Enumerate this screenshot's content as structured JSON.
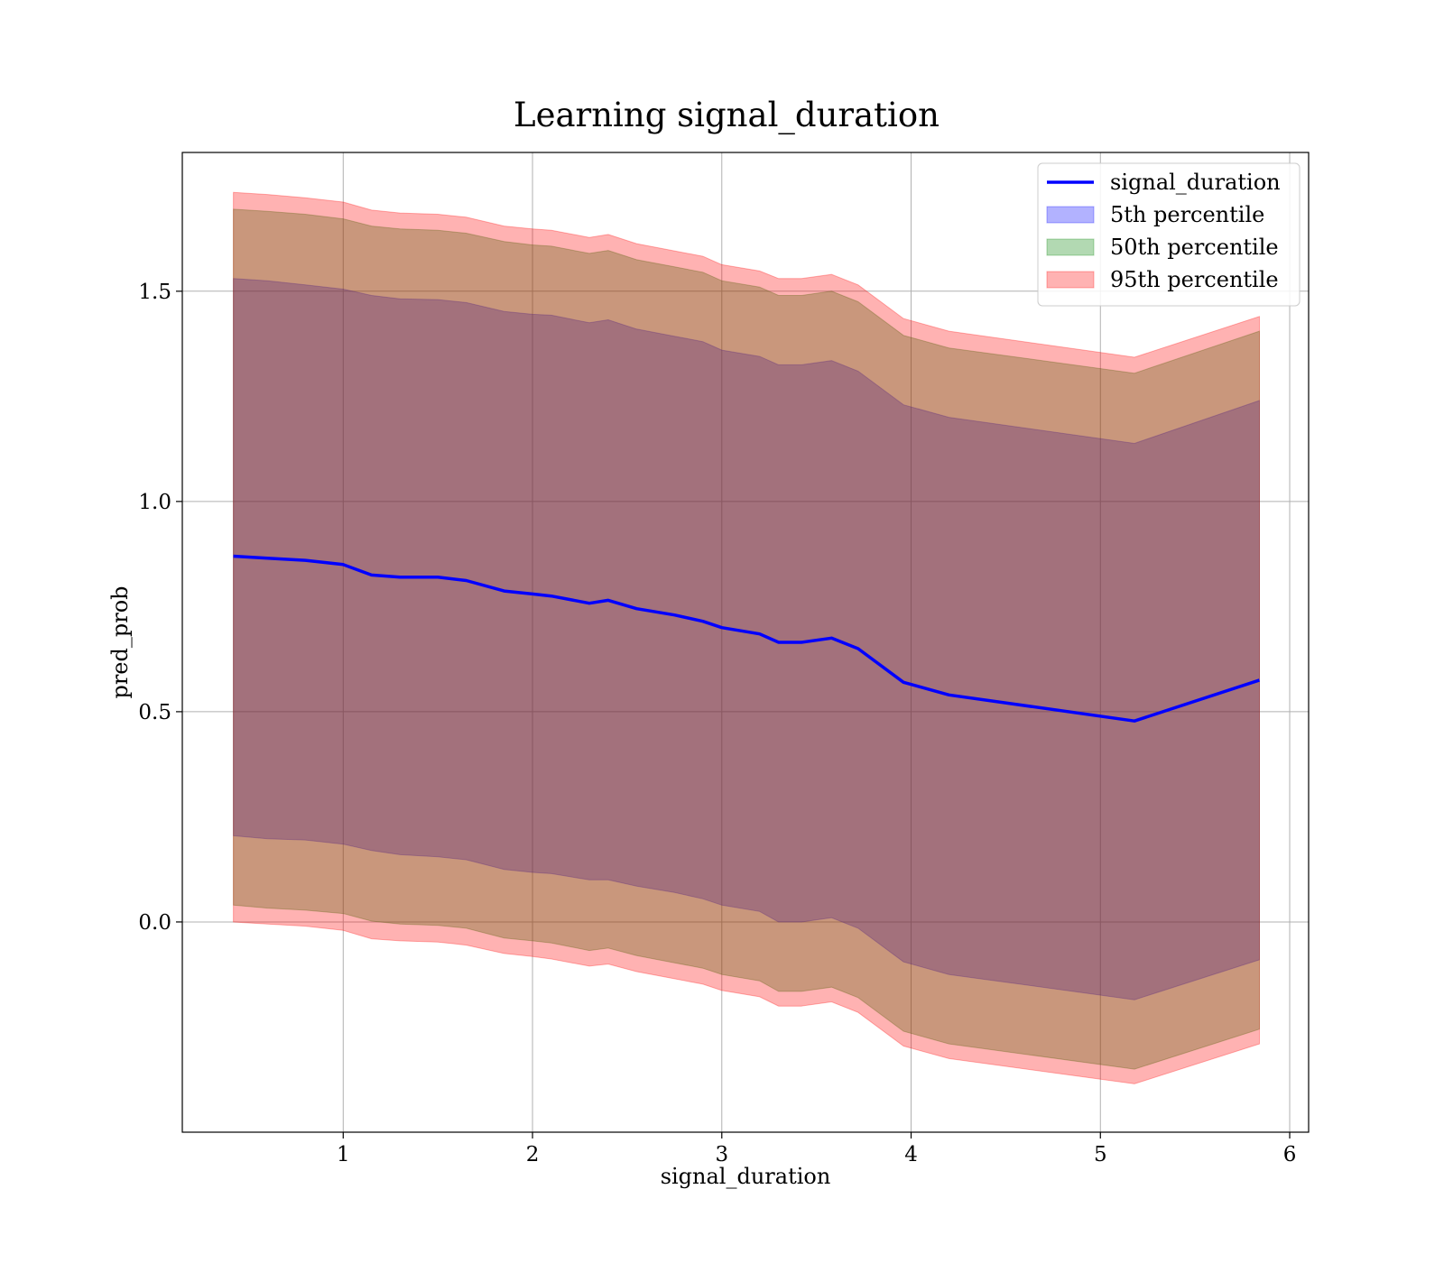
{
  "chart_data": {
    "type": "area",
    "title": "Learning signal_duration",
    "xlabel": "signal_duration",
    "ylabel": "pred_prob",
    "xlim": [
      0.15,
      6.1
    ],
    "ylim": [
      -0.5,
      1.83
    ],
    "xticks": [
      1,
      2,
      3,
      4,
      5,
      6
    ],
    "xtick_labels": [
      "1",
      "2",
      "3",
      "4",
      "5",
      "6"
    ],
    "yticks": [
      0.0,
      0.5,
      1.0,
      1.5
    ],
    "ytick_labels": [
      "0.0",
      "0.5",
      "1.0",
      "1.5"
    ],
    "grid": true,
    "legend_position": "top-right",
    "x": [
      0.42,
      0.6,
      0.8,
      1.0,
      1.15,
      1.3,
      1.5,
      1.65,
      1.85,
      2.0,
      2.1,
      2.3,
      2.4,
      2.55,
      2.75,
      2.9,
      3.0,
      3.2,
      3.3,
      3.42,
      3.58,
      3.72,
      3.96,
      4.2,
      5.18,
      5.84
    ],
    "series": [
      {
        "name": "signal_duration",
        "kind": "line",
        "color": "#0000ff",
        "values": [
          0.87,
          0.865,
          0.86,
          0.85,
          0.825,
          0.82,
          0.82,
          0.812,
          0.787,
          0.78,
          0.775,
          0.758,
          0.765,
          0.745,
          0.73,
          0.715,
          0.7,
          0.685,
          0.665,
          0.665,
          0.675,
          0.65,
          0.57,
          0.54,
          0.478,
          0.575
        ]
      },
      {
        "name": "5th percentile",
        "kind": "band",
        "color": "#0000ff",
        "lower": [
          0.205,
          0.198,
          0.195,
          0.185,
          0.17,
          0.16,
          0.155,
          0.148,
          0.125,
          0.118,
          0.115,
          0.1,
          0.1,
          0.085,
          0.07,
          0.055,
          0.04,
          0.025,
          0.0,
          0.0,
          0.01,
          -0.015,
          -0.095,
          -0.125,
          -0.185,
          -0.09
        ],
        "upper": [
          1.53,
          1.525,
          1.515,
          1.505,
          1.49,
          1.482,
          1.48,
          1.473,
          1.452,
          1.445,
          1.443,
          1.425,
          1.432,
          1.41,
          1.393,
          1.38,
          1.36,
          1.345,
          1.325,
          1.325,
          1.335,
          1.31,
          1.23,
          1.2,
          1.138,
          1.24
        ]
      },
      {
        "name": "50th percentile",
        "kind": "band",
        "color": "#008000",
        "lower": [
          0.04,
          0.033,
          0.028,
          0.02,
          0.002,
          -0.005,
          -0.008,
          -0.015,
          -0.038,
          -0.045,
          -0.05,
          -0.068,
          -0.062,
          -0.08,
          -0.097,
          -0.11,
          -0.125,
          -0.14,
          -0.165,
          -0.165,
          -0.155,
          -0.18,
          -0.26,
          -0.29,
          -0.35,
          -0.255
        ],
        "upper": [
          1.695,
          1.69,
          1.683,
          1.672,
          1.655,
          1.648,
          1.645,
          1.638,
          1.618,
          1.61,
          1.607,
          1.59,
          1.597,
          1.575,
          1.558,
          1.545,
          1.525,
          1.51,
          1.49,
          1.49,
          1.5,
          1.475,
          1.395,
          1.365,
          1.305,
          1.405
        ]
      },
      {
        "name": "95th percentile",
        "kind": "band",
        "color": "#ff0000",
        "lower": [
          0.0,
          -0.005,
          -0.01,
          -0.02,
          -0.04,
          -0.045,
          -0.048,
          -0.055,
          -0.075,
          -0.082,
          -0.088,
          -0.105,
          -0.1,
          -0.118,
          -0.135,
          -0.148,
          -0.163,
          -0.178,
          -0.2,
          -0.2,
          -0.19,
          -0.215,
          -0.295,
          -0.325,
          -0.385,
          -0.29
        ],
        "upper": [
          1.735,
          1.73,
          1.722,
          1.712,
          1.693,
          1.686,
          1.683,
          1.676,
          1.655,
          1.648,
          1.645,
          1.628,
          1.635,
          1.613,
          1.596,
          1.583,
          1.563,
          1.548,
          1.53,
          1.53,
          1.54,
          1.515,
          1.435,
          1.405,
          1.343,
          1.44
        ]
      }
    ]
  }
}
